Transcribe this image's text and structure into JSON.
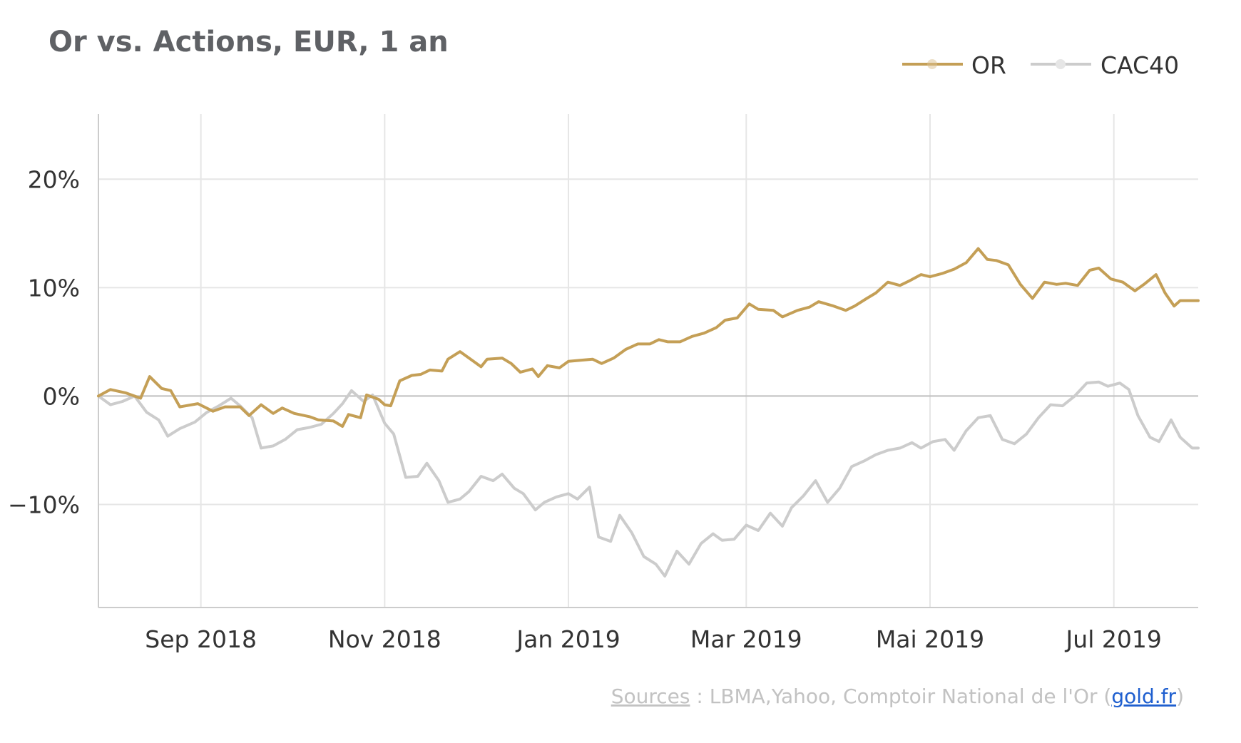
{
  "chart_data": {
    "type": "line",
    "title": "Or vs. Actions, EUR, 1 an",
    "xlabel": "",
    "ylabel": "",
    "x_ticks": [
      {
        "label": "Sep 2018",
        "date": "2018-09-01"
      },
      {
        "label": "Nov 2018",
        "date": "2018-11-01"
      },
      {
        "label": "Jan 2019",
        "date": "2019-01-01"
      },
      {
        "label": "Mar 2019",
        "date": "2019-03-01"
      },
      {
        "label": "Mai 2019",
        "date": "2019-05-01"
      },
      {
        "label": "Jul 2019",
        "date": "2019-07-01"
      }
    ],
    "y_ticks": [
      {
        "label": "20%",
        "value": 20
      },
      {
        "label": "10%",
        "value": 10
      },
      {
        "label": "0%",
        "value": 0
      },
      {
        "label": "−10%",
        "value": -10
      }
    ],
    "xlim": [
      "2018-07-29",
      "2019-07-29"
    ],
    "ylim": [
      -19.5,
      26
    ],
    "grid": true,
    "legend_position": "top-right",
    "series": [
      {
        "name": "OR",
        "color": "#c49f56",
        "points": [
          [
            "2018-07-29",
            0
          ],
          [
            "2018-08-02",
            0.6
          ],
          [
            "2018-08-07",
            0.3
          ],
          [
            "2018-08-12",
            -0.2
          ],
          [
            "2018-08-15",
            1.8
          ],
          [
            "2018-08-19",
            0.7
          ],
          [
            "2018-08-22",
            0.5
          ],
          [
            "2018-08-25",
            -1.0
          ],
          [
            "2018-08-31",
            -0.7
          ],
          [
            "2018-09-05",
            -1.4
          ],
          [
            "2018-09-09",
            -1.0
          ],
          [
            "2018-09-14",
            -1.0
          ],
          [
            "2018-09-17",
            -1.8
          ],
          [
            "2018-09-21",
            -0.8
          ],
          [
            "2018-09-25",
            -1.6
          ],
          [
            "2018-09-28",
            -1.1
          ],
          [
            "2018-10-02",
            -1.6
          ],
          [
            "2018-10-07",
            -1.9
          ],
          [
            "2018-10-10",
            -2.2
          ],
          [
            "2018-10-15",
            -2.3
          ],
          [
            "2018-10-18",
            -2.8
          ],
          [
            "2018-10-20",
            -1.7
          ],
          [
            "2018-10-24",
            -2.0
          ],
          [
            "2018-10-26",
            0.1
          ],
          [
            "2018-10-30",
            -0.3
          ],
          [
            "2018-11-01",
            -0.8
          ],
          [
            "2018-11-03",
            -0.9
          ],
          [
            "2018-11-06",
            1.4
          ],
          [
            "2018-11-10",
            1.9
          ],
          [
            "2018-11-13",
            2.0
          ],
          [
            "2018-11-16",
            2.4
          ],
          [
            "2018-11-20",
            2.3
          ],
          [
            "2018-11-22",
            3.4
          ],
          [
            "2018-11-26",
            4.1
          ],
          [
            "2018-11-30",
            3.3
          ],
          [
            "2018-12-03",
            2.7
          ],
          [
            "2018-12-05",
            3.4
          ],
          [
            "2018-12-10",
            3.5
          ],
          [
            "2018-12-13",
            3.0
          ],
          [
            "2018-12-16",
            2.2
          ],
          [
            "2018-12-20",
            2.5
          ],
          [
            "2018-12-22",
            1.8
          ],
          [
            "2018-12-25",
            2.8
          ],
          [
            "2018-12-29",
            2.6
          ],
          [
            "2019-01-01",
            3.2
          ],
          [
            "2019-01-05",
            3.3
          ],
          [
            "2019-01-09",
            3.4
          ],
          [
            "2019-01-12",
            3.0
          ],
          [
            "2019-01-16",
            3.5
          ],
          [
            "2019-01-20",
            4.3
          ],
          [
            "2019-01-24",
            4.8
          ],
          [
            "2019-01-28",
            4.8
          ],
          [
            "2019-01-31",
            5.2
          ],
          [
            "2019-02-03",
            5.0
          ],
          [
            "2019-02-07",
            5.0
          ],
          [
            "2019-02-11",
            5.5
          ],
          [
            "2019-02-15",
            5.8
          ],
          [
            "2019-02-19",
            6.3
          ],
          [
            "2019-02-22",
            7.0
          ],
          [
            "2019-02-26",
            7.2
          ],
          [
            "2019-03-02",
            8.5
          ],
          [
            "2019-03-05",
            8.0
          ],
          [
            "2019-03-10",
            7.9
          ],
          [
            "2019-03-13",
            7.3
          ],
          [
            "2019-03-18",
            7.9
          ],
          [
            "2019-03-22",
            8.2
          ],
          [
            "2019-03-25",
            8.7
          ],
          [
            "2019-03-30",
            8.3
          ],
          [
            "2019-04-03",
            7.9
          ],
          [
            "2019-04-06",
            8.3
          ],
          [
            "2019-04-10",
            9.0
          ],
          [
            "2019-04-13",
            9.5
          ],
          [
            "2019-04-17",
            10.5
          ],
          [
            "2019-04-21",
            10.2
          ],
          [
            "2019-04-24",
            10.6
          ],
          [
            "2019-04-28",
            11.2
          ],
          [
            "2019-05-01",
            11.0
          ],
          [
            "2019-05-05",
            11.3
          ],
          [
            "2019-05-09",
            11.7
          ],
          [
            "2019-05-13",
            12.3
          ],
          [
            "2019-05-17",
            13.6
          ],
          [
            "2019-05-20",
            12.6
          ],
          [
            "2019-05-23",
            12.5
          ],
          [
            "2019-05-27",
            12.1
          ],
          [
            "2019-05-31",
            10.3
          ],
          [
            "2019-06-04",
            9.0
          ],
          [
            "2019-06-08",
            10.5
          ],
          [
            "2019-06-12",
            10.3
          ],
          [
            "2019-06-15",
            10.4
          ],
          [
            "2019-06-19",
            10.2
          ],
          [
            "2019-06-23",
            11.6
          ],
          [
            "2019-06-26",
            11.8
          ],
          [
            "2019-06-30",
            10.8
          ],
          [
            "2019-07-04",
            10.5
          ],
          [
            "2019-07-08",
            9.7
          ],
          [
            "2019-07-11",
            10.3
          ],
          [
            "2019-07-15",
            11.2
          ],
          [
            "2019-07-18",
            9.5
          ],
          [
            "2019-07-21",
            8.3
          ],
          [
            "2019-07-23",
            8.8
          ],
          [
            "2019-07-27",
            8.8
          ],
          [
            "2019-07-29",
            8.8
          ]
        ]
      },
      {
        "name": "CAC40",
        "color": "#cccccc",
        "points": [
          [
            "2018-07-29",
            0
          ],
          [
            "2018-08-02",
            -0.8
          ],
          [
            "2018-08-06",
            -0.5
          ],
          [
            "2018-08-10",
            0.0
          ],
          [
            "2018-08-14",
            -1.5
          ],
          [
            "2018-08-18",
            -2.2
          ],
          [
            "2018-08-21",
            -3.7
          ],
          [
            "2018-08-25",
            -3.0
          ],
          [
            "2018-08-30",
            -2.4
          ],
          [
            "2018-09-03",
            -1.5
          ],
          [
            "2018-09-07",
            -0.9
          ],
          [
            "2018-09-11",
            -0.2
          ],
          [
            "2018-09-14",
            -0.9
          ],
          [
            "2018-09-18",
            -2.0
          ],
          [
            "2018-09-21",
            -4.8
          ],
          [
            "2018-09-25",
            -4.6
          ],
          [
            "2018-09-29",
            -4.0
          ],
          [
            "2018-10-03",
            -3.1
          ],
          [
            "2018-10-07",
            -2.9
          ],
          [
            "2018-10-11",
            -2.6
          ],
          [
            "2018-10-15",
            -1.6
          ],
          [
            "2018-10-18",
            -0.7
          ],
          [
            "2018-10-21",
            0.5
          ],
          [
            "2018-10-25",
            -0.5
          ],
          [
            "2018-10-28",
            0.1
          ],
          [
            "2018-11-01",
            -2.5
          ],
          [
            "2018-11-04",
            -3.5
          ],
          [
            "2018-11-08",
            -7.5
          ],
          [
            "2018-11-12",
            -7.4
          ],
          [
            "2018-11-15",
            -6.2
          ],
          [
            "2018-11-19",
            -7.8
          ],
          [
            "2018-11-22",
            -9.8
          ],
          [
            "2018-11-26",
            -9.5
          ],
          [
            "2018-11-29",
            -8.8
          ],
          [
            "2018-12-03",
            -7.4
          ],
          [
            "2018-12-07",
            -7.8
          ],
          [
            "2018-12-10",
            -7.2
          ],
          [
            "2018-12-14",
            -8.5
          ],
          [
            "2018-12-17",
            -9.0
          ],
          [
            "2018-12-21",
            -10.5
          ],
          [
            "2018-12-24",
            -9.8
          ],
          [
            "2018-12-28",
            -9.3
          ],
          [
            "2019-01-01",
            -9.0
          ],
          [
            "2019-01-04",
            -9.5
          ],
          [
            "2019-01-08",
            -8.4
          ],
          [
            "2019-01-11",
            -13.0
          ],
          [
            "2019-01-15",
            -13.4
          ],
          [
            "2019-01-18",
            -11.0
          ],
          [
            "2019-01-22",
            -12.6
          ],
          [
            "2019-01-26",
            -14.8
          ],
          [
            "2019-01-30",
            -15.5
          ],
          [
            "2019-02-02",
            -16.6
          ],
          [
            "2019-02-06",
            -14.3
          ],
          [
            "2019-02-10",
            -15.5
          ],
          [
            "2019-02-14",
            -13.6
          ],
          [
            "2019-02-18",
            -12.7
          ],
          [
            "2019-02-21",
            -13.3
          ],
          [
            "2019-02-25",
            -13.2
          ],
          [
            "2019-03-01",
            -11.9
          ],
          [
            "2019-03-05",
            -12.4
          ],
          [
            "2019-03-09",
            -10.8
          ],
          [
            "2019-03-13",
            -12.0
          ],
          [
            "2019-03-16",
            -10.3
          ],
          [
            "2019-03-20",
            -9.2
          ],
          [
            "2019-03-24",
            -7.8
          ],
          [
            "2019-03-28",
            -9.8
          ],
          [
            "2019-04-01",
            -8.5
          ],
          [
            "2019-04-05",
            -6.5
          ],
          [
            "2019-04-09",
            -6.0
          ],
          [
            "2019-04-13",
            -5.4
          ],
          [
            "2019-04-17",
            -5.0
          ],
          [
            "2019-04-21",
            -4.8
          ],
          [
            "2019-04-25",
            -4.3
          ],
          [
            "2019-04-28",
            -4.8
          ],
          [
            "2019-05-02",
            -4.2
          ],
          [
            "2019-05-06",
            -4.0
          ],
          [
            "2019-05-09",
            -5.0
          ],
          [
            "2019-05-13",
            -3.2
          ],
          [
            "2019-05-17",
            -2.0
          ],
          [
            "2019-05-21",
            -1.8
          ],
          [
            "2019-05-25",
            -4.0
          ],
          [
            "2019-05-29",
            -4.4
          ],
          [
            "2019-06-02",
            -3.5
          ],
          [
            "2019-06-06",
            -2.0
          ],
          [
            "2019-06-10",
            -0.8
          ],
          [
            "2019-06-14",
            -0.9
          ],
          [
            "2019-06-18",
            0.0
          ],
          [
            "2019-06-22",
            1.2
          ],
          [
            "2019-06-26",
            1.3
          ],
          [
            "2019-06-29",
            0.9
          ],
          [
            "2019-07-03",
            1.2
          ],
          [
            "2019-07-06",
            0.6
          ],
          [
            "2019-07-09",
            -1.8
          ],
          [
            "2019-07-13",
            -3.8
          ],
          [
            "2019-07-16",
            -4.2
          ],
          [
            "2019-07-20",
            -2.2
          ],
          [
            "2019-07-23",
            -3.8
          ],
          [
            "2019-07-27",
            -4.8
          ],
          [
            "2019-07-29",
            -4.8
          ]
        ]
      }
    ]
  },
  "legend": [
    {
      "label": "OR",
      "color": "#c49f56"
    },
    {
      "label": "CAC40",
      "color": "#cccccc"
    }
  ],
  "source": {
    "prefix_link": "Sources",
    "middle": " : LBMA,Yahoo, Comptoir National de l'Or (",
    "link": "gold.fr",
    "suffix": ")"
  },
  "colors": {
    "title": "#5f6165",
    "grid": "#e6e6e6",
    "axis": "#cccccc",
    "zero_line": "#bfbfbf",
    "source_text": "#c2c2c2",
    "source_link": "#1f5fcf"
  }
}
